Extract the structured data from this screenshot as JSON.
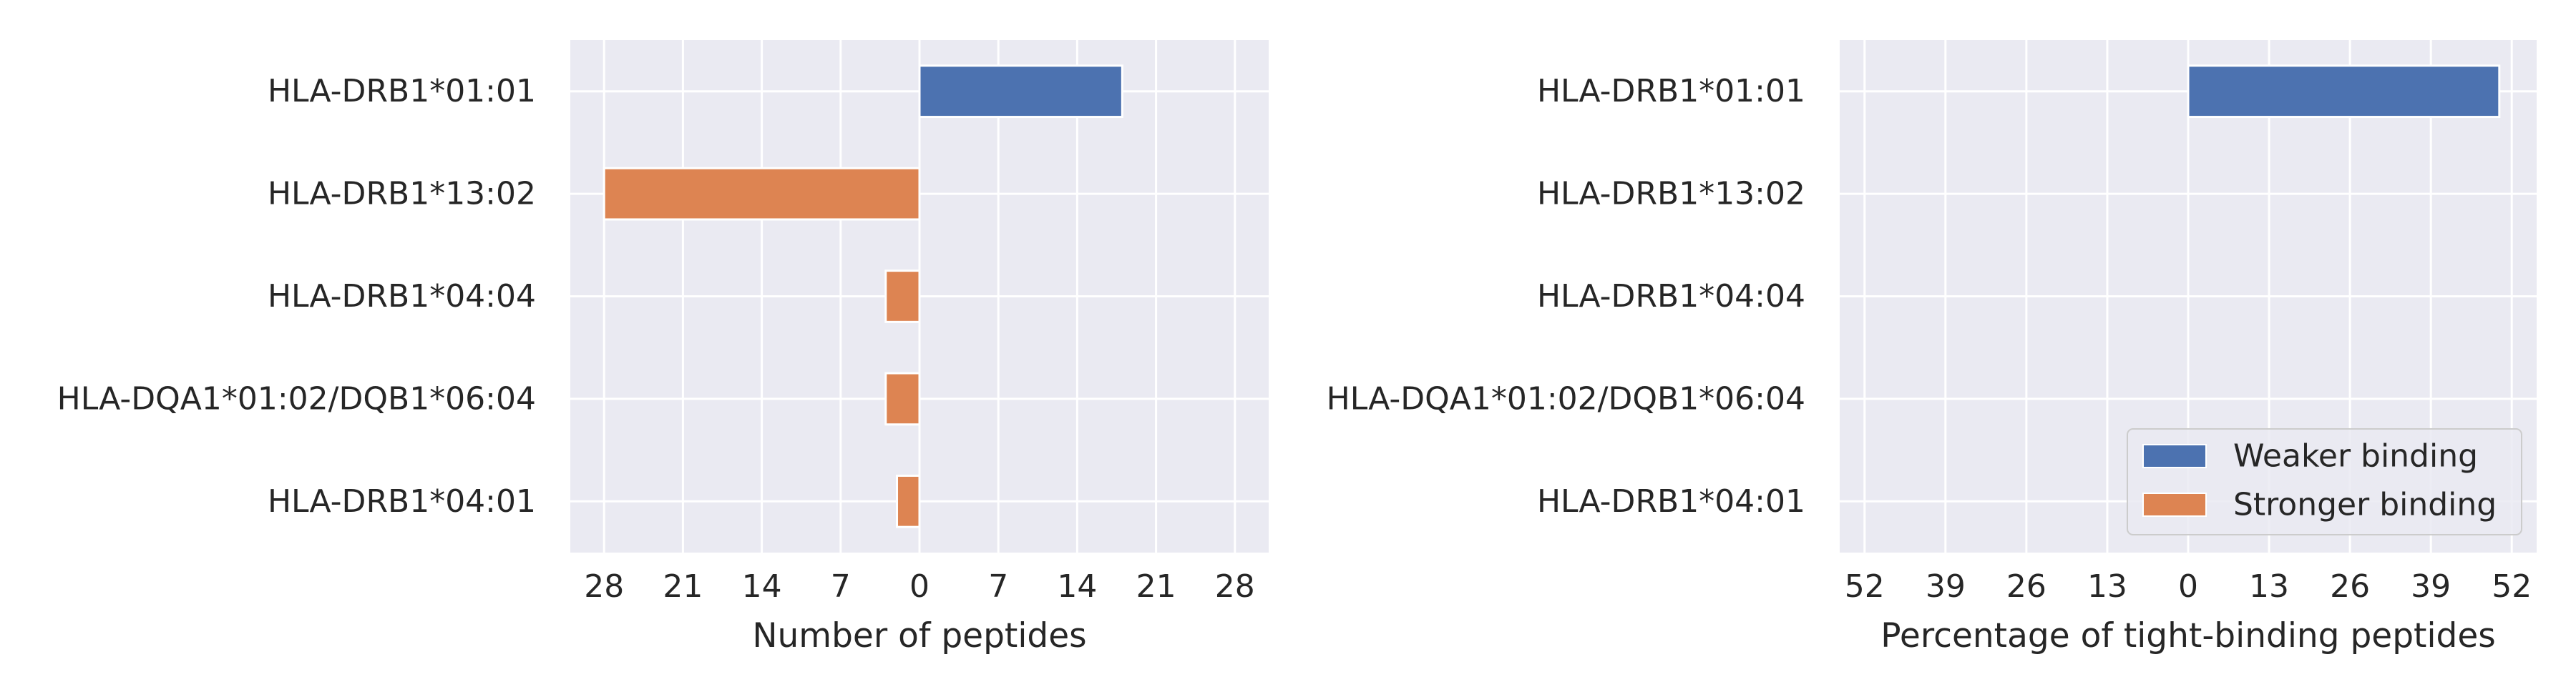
{
  "chart_data": [
    {
      "type": "bar",
      "orientation": "horizontal",
      "categories": [
        "HLA-DRB1*01:01",
        "HLA-DRB1*13:02",
        "HLA-DRB1*04:04",
        "HLA-DQA1*01:02/DQB1*06:04",
        "HLA-DRB1*04:01"
      ],
      "series": [
        {
          "name": "Weaker binding",
          "color": "#4c72b0",
          "direction": "right",
          "values": [
            18,
            0,
            0,
            0,
            0
          ]
        },
        {
          "name": "Stronger binding",
          "color": "#dd8452",
          "direction": "left",
          "values": [
            0,
            28,
            3,
            3,
            2
          ]
        }
      ],
      "xlabel": "Number of peptides",
      "ylabel": "",
      "xlim": [
        -31,
        31
      ],
      "xticks": [
        -28,
        -21,
        -14,
        -7,
        0,
        7,
        14,
        21,
        28
      ],
      "xtick_labels": [
        "28",
        "21",
        "14",
        "7",
        "0",
        "7",
        "14",
        "21",
        "28"
      ],
      "grid": true,
      "legend": false
    },
    {
      "type": "bar",
      "orientation": "horizontal",
      "categories": [
        "HLA-DRB1*01:01",
        "HLA-DRB1*13:02",
        "HLA-DRB1*04:04",
        "HLA-DQA1*01:02/DQB1*06:04",
        "HLA-DRB1*04:01"
      ],
      "series": [
        {
          "name": "Weaker binding",
          "color": "#4c72b0",
          "direction": "right",
          "values": [
            50,
            0,
            0,
            0,
            0
          ]
        },
        {
          "name": "Stronger binding",
          "color": "#dd8452",
          "direction": "left",
          "values": [
            0,
            0,
            0,
            0,
            0
          ]
        }
      ],
      "xlabel": "Percentage of tight-binding peptides",
      "ylabel": "",
      "xlim": [
        -56,
        56
      ],
      "xticks": [
        -52,
        -39,
        -26,
        -13,
        0,
        13,
        26,
        39,
        52
      ],
      "xtick_labels": [
        "52",
        "39",
        "26",
        "13",
        "0",
        "13",
        "26",
        "39",
        "52"
      ],
      "grid": true,
      "legend": true,
      "legend_position": "lower-right"
    }
  ]
}
